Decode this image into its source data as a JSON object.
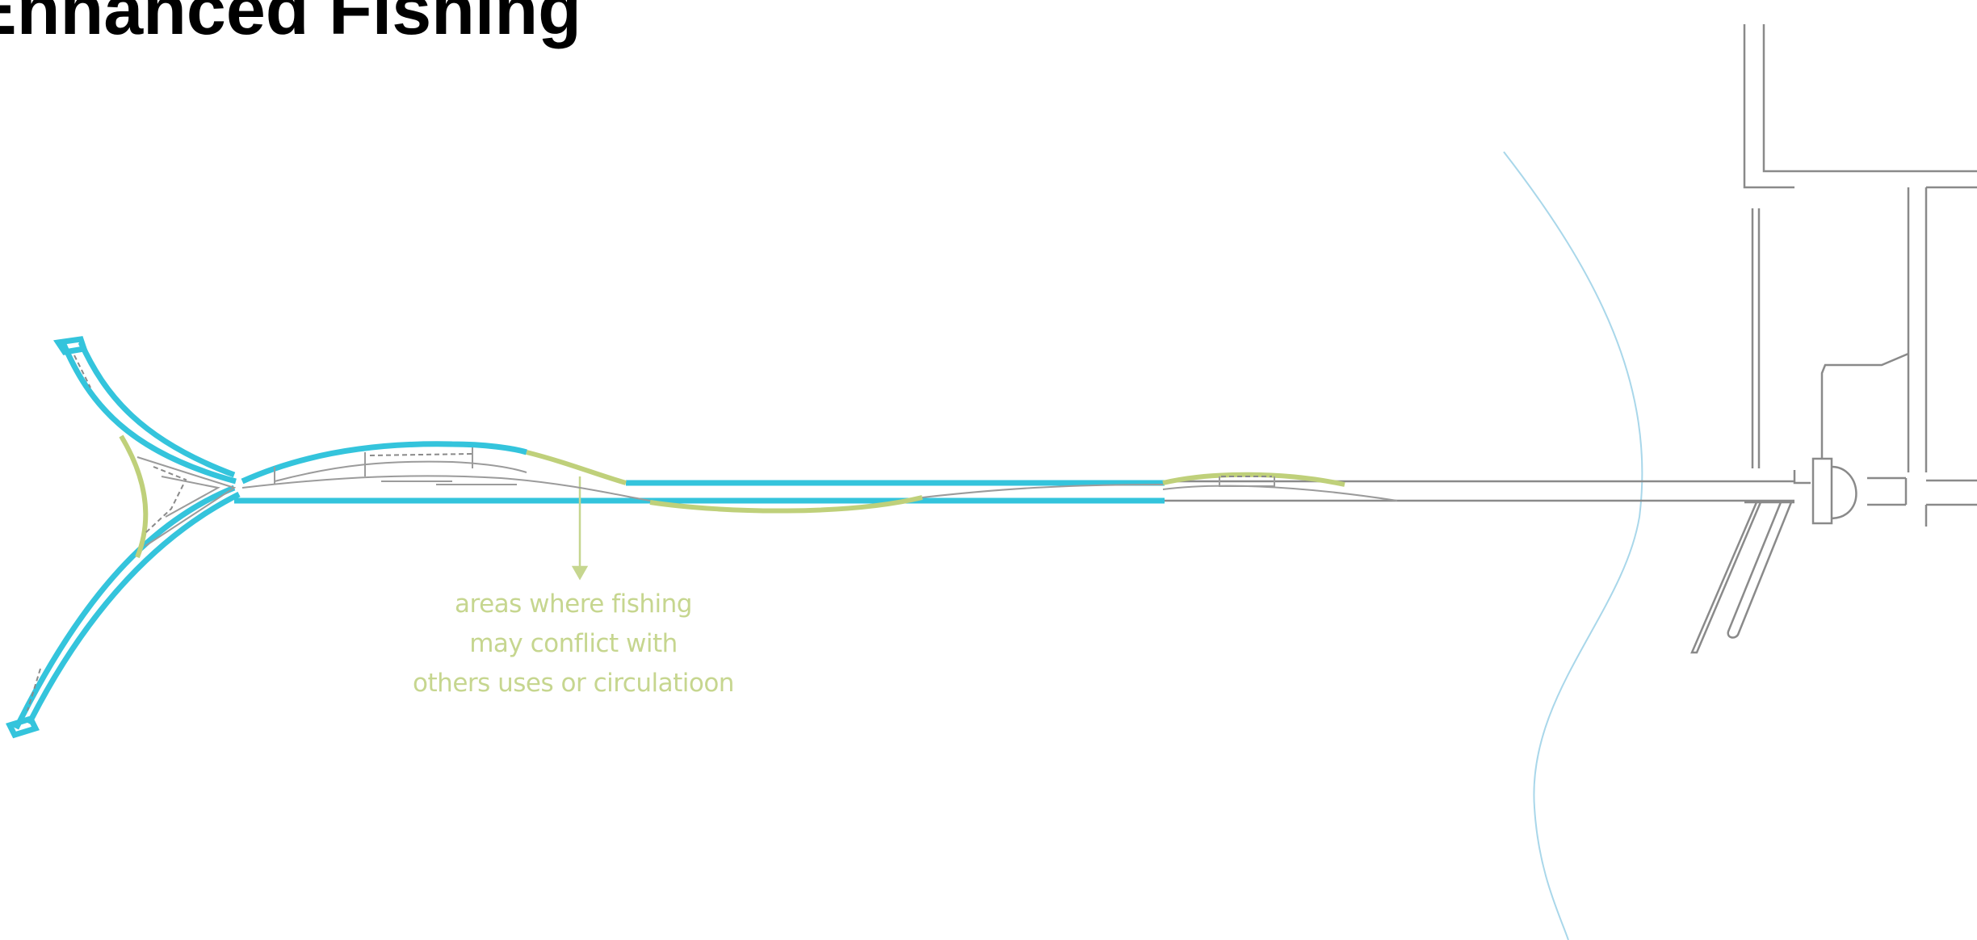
{
  "title": "Enhanced Fishing",
  "annotation": {
    "lines": [
      "areas where fishing",
      "may conflict with",
      "others uses or circulatioon"
    ]
  },
  "colors": {
    "fishing_zone": "#34c4dc",
    "conflict_zone": "#bfd07a",
    "structure": "#8a8a8a",
    "water_edge": "#a9d7ea",
    "annotation_text": "#c6d68f"
  }
}
